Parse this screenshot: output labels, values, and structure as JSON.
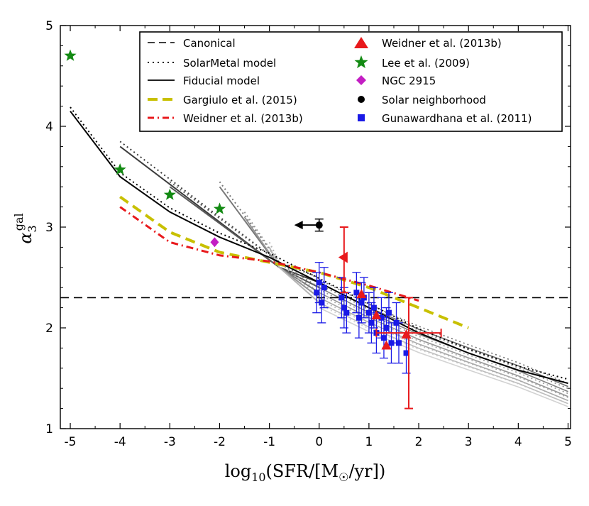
{
  "chart_data": {
    "type": "scatter",
    "xlabel": {
      "prefix": "log",
      "sub": "10",
      "mid": "(SFR/[M",
      "sun": "☉",
      "suffix": "/yr])"
    },
    "ylabel": {
      "base": "α",
      "sub": "3",
      "sup": "gal"
    },
    "xlim": [
      -5.2,
      5.05
    ],
    "ylim": [
      1,
      5
    ],
    "xticks": [
      -5,
      -4,
      -3,
      -2,
      -1,
      0,
      1,
      2,
      3,
      4,
      5
    ],
    "xtick_labels": [
      "-5",
      "-4",
      "-3",
      "-2",
      "-1",
      "0",
      "1",
      "2",
      "3",
      "4",
      "5"
    ],
    "yticks": [
      1,
      2,
      3,
      4,
      5
    ],
    "ytick_labels": [
      "1",
      "2",
      "3",
      "4",
      "5"
    ],
    "canonical": {
      "name": "Canonical",
      "y": 2.3
    },
    "solarmetal_label": "SolarMetal model",
    "fiducial_label": "Fiducial model",
    "fiducial_main": {
      "x": [
        -5,
        -4,
        -3,
        -2,
        -1,
        0,
        1,
        2,
        3,
        4,
        5
      ],
      "y": [
        4.15,
        3.5,
        3.15,
        2.9,
        2.7,
        2.45,
        2.2,
        1.95,
        1.75,
        1.58,
        1.45
      ]
    },
    "model_family": {
      "x": [
        0,
        1,
        2,
        3,
        4,
        5
      ],
      "start_x": [
        -4,
        -3,
        -2,
        -1.5,
        -1
      ],
      "start_y": [
        3.8,
        3.4,
        3.4,
        3.1,
        2.8
      ],
      "end_y": [
        1.38,
        1.33,
        1.28,
        1.24,
        1.21,
        1.18
      ],
      "start_y0": [
        2.45,
        2.4,
        2.35,
        2.3,
        2.25,
        2.2
      ]
    },
    "gargiulo": {
      "name": "Gargiulo et al. (2015)",
      "x": [
        -4,
        -3,
        -2,
        -1,
        0,
        1,
        2,
        3
      ],
      "y": [
        3.3,
        2.95,
        2.75,
        2.65,
        2.55,
        2.4,
        2.2,
        2.0
      ]
    },
    "weidner_line": {
      "name": "Weidner et al. (2013b)",
      "x": [
        -4,
        -3,
        -2,
        -1,
        0,
        1,
        2
      ],
      "y": [
        3.2,
        2.85,
        2.72,
        2.66,
        2.55,
        2.42,
        2.27
      ]
    },
    "weidner_points": {
      "name": "Weidner et al. (2013b)",
      "x": [
        0.85,
        1.15,
        1.35,
        1.75
      ],
      "y": [
        2.33,
        2.12,
        1.82,
        1.93
      ]
    },
    "weidner_special": [
      {
        "x": 0.5,
        "y": 2.7,
        "yerr_low": 0.35,
        "yerr_high": 0.3,
        "marker": "left"
      },
      {
        "x": 1.8,
        "y": 1.95,
        "xerr": 0.65,
        "yerr_low": 0.75,
        "yerr_high": 0.35,
        "marker": "none"
      }
    ],
    "lee": {
      "name": "Lee et al. (2009)",
      "x": [
        -5,
        -4,
        -3,
        -2
      ],
      "y": [
        4.7,
        3.57,
        3.32,
        3.18
      ]
    },
    "ngc2915": {
      "name": "NGC 2915",
      "x": [
        -2.1
      ],
      "y": [
        2.85
      ]
    },
    "solar_neighborhood": {
      "name": "Solar neighborhood",
      "x": 0,
      "y": 3.02,
      "yerr": 0.06,
      "arrow_to_x": -0.5
    },
    "gunawardhana": {
      "name": "Gunawardhana et al. (2011)",
      "x": [
        -0.05,
        0.0,
        0.05,
        0.1,
        0.45,
        0.5,
        0.55,
        0.75,
        0.8,
        0.85,
        0.9,
        1.0,
        1.05,
        1.1,
        1.15,
        1.25,
        1.3,
        1.35,
        1.4,
        1.45,
        1.55,
        1.6,
        1.75
      ],
      "y": [
        2.35,
        2.45,
        2.25,
        2.4,
        2.3,
        2.2,
        2.15,
        2.35,
        2.1,
        2.25,
        2.3,
        2.15,
        2.05,
        2.2,
        1.95,
        2.1,
        1.9,
        2.0,
        2.15,
        1.85,
        2.05,
        1.85,
        1.75
      ],
      "yerr": 0.2
    },
    "legend_position": "top-right"
  }
}
